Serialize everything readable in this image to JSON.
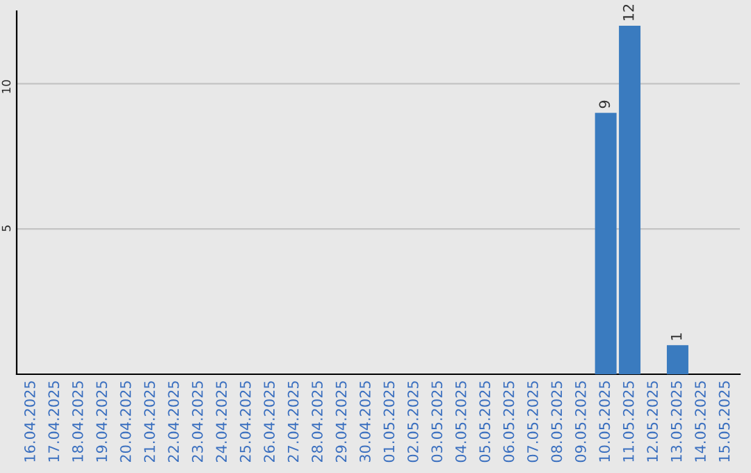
{
  "chart_data": {
    "type": "bar",
    "categories": [
      "16.04.2025",
      "17.04.2025",
      "18.04.2025",
      "19.04.2025",
      "20.04.2025",
      "21.04.2025",
      "22.04.2025",
      "23.04.2025",
      "24.04.2025",
      "25.04.2025",
      "26.04.2025",
      "27.04.2025",
      "28.04.2025",
      "29.04.2025",
      "30.04.2025",
      "01.05.2025",
      "02.05.2025",
      "03.05.2025",
      "04.05.2025",
      "05.05.2025",
      "06.05.2025",
      "07.05.2025",
      "08.05.2025",
      "09.05.2025",
      "10.05.2025",
      "11.05.2025",
      "12.05.2025",
      "13.05.2025",
      "14.05.2025",
      "15.05.2025"
    ],
    "values": [
      0,
      0,
      0,
      0,
      0,
      0,
      0,
      0,
      0,
      0,
      0,
      0,
      0,
      0,
      0,
      0,
      0,
      0,
      0,
      0,
      0,
      0,
      0,
      0,
      9,
      12,
      0,
      1,
      0,
      0
    ],
    "value_labels": [
      null,
      null,
      null,
      null,
      null,
      null,
      null,
      null,
      null,
      null,
      null,
      null,
      null,
      null,
      null,
      null,
      null,
      null,
      null,
      null,
      null,
      null,
      null,
      null,
      "9",
      "12",
      null,
      "1",
      null,
      null
    ],
    "color": "#3a7bbf",
    "ylim": [
      0,
      12.5
    ],
    "yticks": [
      5,
      10
    ],
    "grid": "y",
    "legend": false
  }
}
